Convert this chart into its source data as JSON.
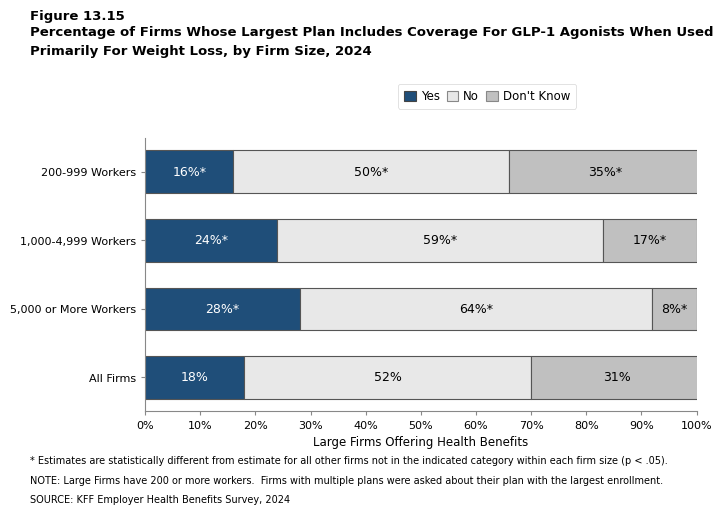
{
  "figure_label": "Figure 13.15",
  "title_line1": "Percentage of Firms Whose Largest Plan Includes Coverage For GLP-1 Agonists When Used",
  "title_line2": "Primarily For Weight Loss, by Firm Size, 2024",
  "categories": [
    "200-999 Workers",
    "1,000-4,999 Workers",
    "5,000 or More Workers",
    "All Firms"
  ],
  "yes_values": [
    16,
    24,
    28,
    18
  ],
  "no_values": [
    50,
    59,
    64,
    52
  ],
  "dk_values": [
    35,
    17,
    8,
    31
  ],
  "yes_labels": [
    "16%*",
    "24%*",
    "28%*",
    "18%"
  ],
  "no_labels": [
    "50%*",
    "59%*",
    "64%*",
    "52%"
  ],
  "dk_labels": [
    "35%*",
    "17%*",
    "8%*",
    "31%"
  ],
  "yes_color": "#1F4E79",
  "no_color": "#E8E8E8",
  "dk_color": "#C0C0C0",
  "bar_edge_color": "#555555",
  "yes_legend": "Yes",
  "no_legend": "No",
  "dk_legend": "Don't Know",
  "xlabel": "Large Firms Offering Health Benefits",
  "xlim": [
    0,
    100
  ],
  "xticks": [
    0,
    10,
    20,
    30,
    40,
    50,
    60,
    70,
    80,
    90,
    100
  ],
  "xtick_labels": [
    "0%",
    "10%",
    "20%",
    "30%",
    "40%",
    "50%",
    "60%",
    "70%",
    "80%",
    "90%",
    "100%"
  ],
  "footnote1": "* Estimates are statistically different from estimate for all other firms not in the indicated category within each firm size (p < .05).",
  "footnote2": "NOTE: Large Firms have 200 or more workers.  Firms with multiple plans were asked about their plan with the largest enrollment.",
  "footnote3": "SOURCE: KFF Employer Health Benefits Survey, 2024",
  "bar_height": 0.62,
  "label_fontsize": 9,
  "tick_fontsize": 8,
  "legend_fontsize": 8.5,
  "footnote_fontsize": 7,
  "title_fontsize": 9.5,
  "figure_label_fontsize": 9.5,
  "xlabel_fontsize": 8.5
}
